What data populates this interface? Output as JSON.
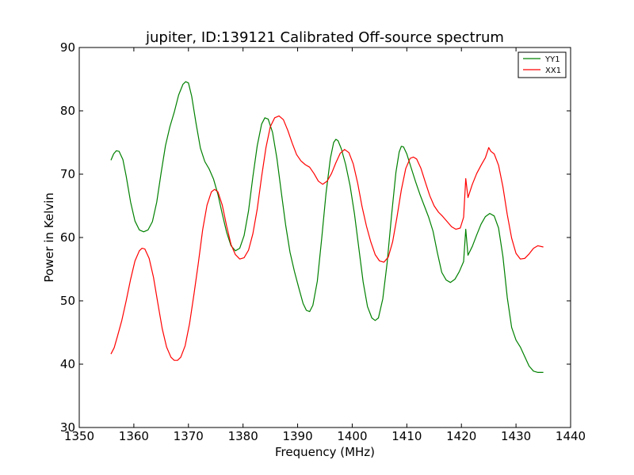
{
  "chart_data": {
    "type": "line",
    "title": "jupiter, ID:139121 Calibrated Off-source spectrum",
    "xlabel": "Frequency (MHz)",
    "ylabel": "Power in Kelvin",
    "xlim": [
      1350,
      1440
    ],
    "ylim": [
      30,
      90
    ],
    "xticks": [
      1350,
      1360,
      1370,
      1380,
      1390,
      1400,
      1410,
      1420,
      1430,
      1440
    ],
    "yticks": [
      30,
      40,
      50,
      60,
      70,
      80,
      90
    ],
    "grid": false,
    "legend_position": "top-right",
    "series": [
      {
        "name": "YY1",
        "color": "#008000",
        "points": [
          [
            1355.8,
            72.2
          ],
          [
            1356.3,
            73.2
          ],
          [
            1356.8,
            73.7
          ],
          [
            1357.3,
            73.6
          ],
          [
            1358.0,
            72.3
          ],
          [
            1358.6,
            69.7
          ],
          [
            1359.4,
            65.6
          ],
          [
            1360.2,
            62.6
          ],
          [
            1361.0,
            61.2
          ],
          [
            1361.8,
            60.9
          ],
          [
            1362.6,
            61.2
          ],
          [
            1363.4,
            62.5
          ],
          [
            1364.2,
            65.6
          ],
          [
            1365.0,
            70.2
          ],
          [
            1365.8,
            74.5
          ],
          [
            1366.6,
            77.5
          ],
          [
            1367.4,
            79.8
          ],
          [
            1368.2,
            82.5
          ],
          [
            1369.0,
            84.2
          ],
          [
            1369.5,
            84.6
          ],
          [
            1370.0,
            84.4
          ],
          [
            1370.6,
            82.3
          ],
          [
            1371.4,
            78.0
          ],
          [
            1372.2,
            74.1
          ],
          [
            1373.0,
            72.0
          ],
          [
            1373.8,
            70.8
          ],
          [
            1374.6,
            69.2
          ],
          [
            1375.4,
            66.8
          ],
          [
            1376.2,
            63.7
          ],
          [
            1377.0,
            60.8
          ],
          [
            1377.8,
            58.7
          ],
          [
            1378.6,
            57.9
          ],
          [
            1379.4,
            58.3
          ],
          [
            1380.2,
            60.3
          ],
          [
            1381.0,
            64.2
          ],
          [
            1381.8,
            69.6
          ],
          [
            1382.6,
            74.5
          ],
          [
            1383.4,
            77.9
          ],
          [
            1384.0,
            78.9
          ],
          [
            1384.6,
            78.7
          ],
          [
            1385.4,
            76.6
          ],
          [
            1386.2,
            72.5
          ],
          [
            1387.0,
            67.2
          ],
          [
            1387.8,
            62.0
          ],
          [
            1388.6,
            57.7
          ],
          [
            1389.4,
            54.7
          ],
          [
            1390.2,
            52.1
          ],
          [
            1391.0,
            49.6
          ],
          [
            1391.6,
            48.5
          ],
          [
            1392.2,
            48.3
          ],
          [
            1392.8,
            49.3
          ],
          [
            1393.6,
            53.1
          ],
          [
            1394.4,
            59.8
          ],
          [
            1395.2,
            67.0
          ],
          [
            1396.0,
            72.5
          ],
          [
            1396.6,
            75.0
          ],
          [
            1397.0,
            75.5
          ],
          [
            1397.4,
            75.3
          ],
          [
            1398.0,
            74.0
          ],
          [
            1398.8,
            71.5
          ],
          [
            1399.6,
            68.2
          ],
          [
            1400.4,
            63.8
          ],
          [
            1401.2,
            58.4
          ],
          [
            1402.0,
            53.0
          ],
          [
            1402.8,
            49.1
          ],
          [
            1403.6,
            47.3
          ],
          [
            1404.2,
            46.9
          ],
          [
            1404.8,
            47.3
          ],
          [
            1405.6,
            50.3
          ],
          [
            1406.4,
            56.0
          ],
          [
            1407.2,
            63.4
          ],
          [
            1408.0,
            70.3
          ],
          [
            1408.6,
            73.5
          ],
          [
            1409.0,
            74.4
          ],
          [
            1409.4,
            74.3
          ],
          [
            1410.0,
            73.2
          ],
          [
            1410.8,
            71.0
          ],
          [
            1411.6,
            68.8
          ],
          [
            1412.4,
            66.8
          ],
          [
            1413.2,
            65.0
          ],
          [
            1414.0,
            63.2
          ],
          [
            1414.8,
            61.0
          ],
          [
            1415.6,
            57.6
          ],
          [
            1416.4,
            54.5
          ],
          [
            1417.2,
            53.3
          ],
          [
            1418.0,
            52.9
          ],
          [
            1418.8,
            53.4
          ],
          [
            1419.6,
            54.6
          ],
          [
            1420.4,
            56.2
          ],
          [
            1420.8,
            61.3
          ],
          [
            1421.2,
            57.2
          ],
          [
            1422.0,
            58.6
          ],
          [
            1422.8,
            60.4
          ],
          [
            1423.6,
            62.1
          ],
          [
            1424.4,
            63.3
          ],
          [
            1425.2,
            63.8
          ],
          [
            1426.0,
            63.4
          ],
          [
            1426.8,
            61.5
          ],
          [
            1427.6,
            57.0
          ],
          [
            1428.4,
            50.5
          ],
          [
            1429.2,
            45.8
          ],
          [
            1430.0,
            43.8
          ],
          [
            1430.8,
            42.7
          ],
          [
            1431.6,
            41.2
          ],
          [
            1432.4,
            39.7
          ],
          [
            1433.2,
            38.9
          ],
          [
            1434.0,
            38.7
          ],
          [
            1435.0,
            38.7
          ]
        ]
      },
      {
        "name": "XX1",
        "color": "#ff0000",
        "points": [
          [
            1355.8,
            41.6
          ],
          [
            1356.4,
            42.6
          ],
          [
            1357.0,
            44.4
          ],
          [
            1357.8,
            46.9
          ],
          [
            1358.6,
            50.0
          ],
          [
            1359.4,
            53.4
          ],
          [
            1360.2,
            56.3
          ],
          [
            1361.0,
            57.9
          ],
          [
            1361.5,
            58.3
          ],
          [
            1362.0,
            58.2
          ],
          [
            1362.8,
            56.7
          ],
          [
            1363.6,
            53.7
          ],
          [
            1364.4,
            49.6
          ],
          [
            1365.2,
            45.6
          ],
          [
            1366.0,
            42.7
          ],
          [
            1366.8,
            41.1
          ],
          [
            1367.4,
            40.6
          ],
          [
            1368.0,
            40.6
          ],
          [
            1368.6,
            41.1
          ],
          [
            1369.4,
            42.9
          ],
          [
            1370.2,
            46.4
          ],
          [
            1371.0,
            51.0
          ],
          [
            1371.8,
            55.9
          ],
          [
            1372.6,
            61.2
          ],
          [
            1373.4,
            65.1
          ],
          [
            1374.2,
            67.2
          ],
          [
            1374.8,
            67.6
          ],
          [
            1375.4,
            67.2
          ],
          [
            1376.2,
            65.1
          ],
          [
            1377.0,
            61.8
          ],
          [
            1377.8,
            58.9
          ],
          [
            1378.6,
            57.3
          ],
          [
            1379.4,
            56.6
          ],
          [
            1380.2,
            56.8
          ],
          [
            1381.0,
            58.0
          ],
          [
            1381.8,
            60.6
          ],
          [
            1382.6,
            64.5
          ],
          [
            1383.4,
            69.6
          ],
          [
            1384.2,
            74.2
          ],
          [
            1385.0,
            77.5
          ],
          [
            1385.8,
            78.9
          ],
          [
            1386.6,
            79.2
          ],
          [
            1387.4,
            78.6
          ],
          [
            1388.2,
            76.9
          ],
          [
            1389.0,
            74.9
          ],
          [
            1389.8,
            73.1
          ],
          [
            1390.6,
            72.1
          ],
          [
            1391.4,
            71.5
          ],
          [
            1392.2,
            71.1
          ],
          [
            1393.0,
            70.1
          ],
          [
            1393.8,
            68.9
          ],
          [
            1394.6,
            68.4
          ],
          [
            1395.4,
            68.9
          ],
          [
            1396.2,
            70.1
          ],
          [
            1397.0,
            71.8
          ],
          [
            1397.8,
            73.3
          ],
          [
            1398.6,
            73.9
          ],
          [
            1399.4,
            73.4
          ],
          [
            1400.2,
            71.6
          ],
          [
            1401.0,
            68.6
          ],
          [
            1401.8,
            64.9
          ],
          [
            1402.6,
            61.8
          ],
          [
            1403.4,
            59.3
          ],
          [
            1404.2,
            57.3
          ],
          [
            1405.0,
            56.3
          ],
          [
            1405.8,
            56.1
          ],
          [
            1406.6,
            56.9
          ],
          [
            1407.4,
            59.3
          ],
          [
            1408.2,
            63.2
          ],
          [
            1409.0,
            67.5
          ],
          [
            1409.8,
            70.9
          ],
          [
            1410.6,
            72.5
          ],
          [
            1411.2,
            72.7
          ],
          [
            1411.8,
            72.4
          ],
          [
            1412.6,
            70.9
          ],
          [
            1413.4,
            68.7
          ],
          [
            1414.2,
            66.6
          ],
          [
            1415.0,
            65.0
          ],
          [
            1415.8,
            64.0
          ],
          [
            1416.6,
            63.3
          ],
          [
            1417.4,
            62.5
          ],
          [
            1418.2,
            61.7
          ],
          [
            1419.0,
            61.3
          ],
          [
            1419.8,
            61.5
          ],
          [
            1420.4,
            63.2
          ],
          [
            1420.8,
            69.3
          ],
          [
            1421.2,
            66.3
          ],
          [
            1422.0,
            68.4
          ],
          [
            1422.8,
            70.1
          ],
          [
            1423.6,
            71.4
          ],
          [
            1424.4,
            72.6
          ],
          [
            1425.0,
            74.2
          ],
          [
            1425.4,
            73.6
          ],
          [
            1426.0,
            73.2
          ],
          [
            1426.8,
            71.4
          ],
          [
            1427.6,
            68.0
          ],
          [
            1428.4,
            63.6
          ],
          [
            1429.2,
            59.9
          ],
          [
            1430.0,
            57.5
          ],
          [
            1430.8,
            56.6
          ],
          [
            1431.6,
            56.7
          ],
          [
            1432.4,
            57.4
          ],
          [
            1433.2,
            58.3
          ],
          [
            1434.0,
            58.7
          ],
          [
            1435.0,
            58.5
          ]
        ]
      }
    ]
  }
}
